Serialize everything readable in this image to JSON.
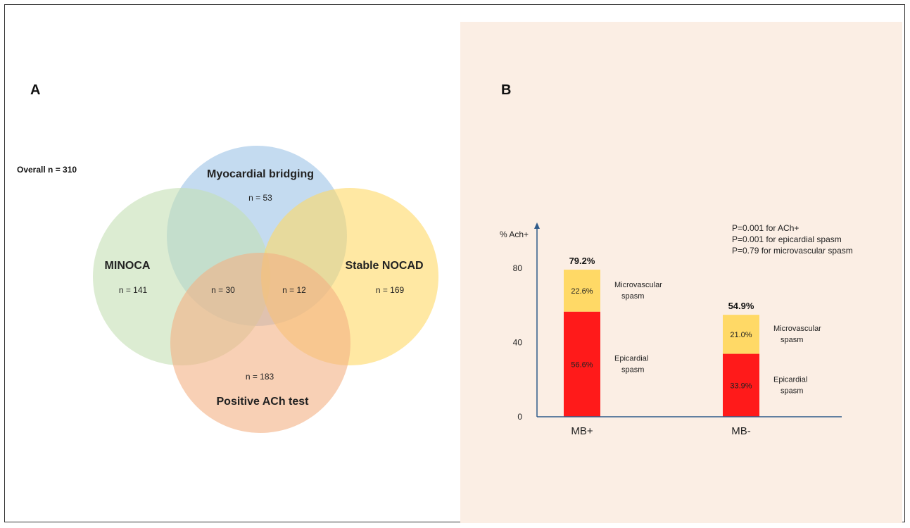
{
  "panel_a": {
    "letter": "A",
    "overall_label": "Overall n = 310",
    "sets": [
      {
        "name": "Myocardial bridging",
        "count_label": "n = 53",
        "color": "#9dc3e6"
      },
      {
        "name": "MINOCA",
        "count_label": "n = 141",
        "color": "#c5e0b4"
      },
      {
        "name": "Stable NOCAD",
        "count_label": "n = 169",
        "color": "#ffd966"
      },
      {
        "name": "Positive ACh test",
        "count_label": "n = 183",
        "color": "#f4b183"
      }
    ],
    "intersections": [
      {
        "sets": [
          "Myocardial bridging",
          "MINOCA",
          "Positive ACh test"
        ],
        "count_label": "n = 30"
      },
      {
        "sets": [
          "Myocardial bridging",
          "Stable NOCAD",
          "Positive ACh test"
        ],
        "count_label": "n = 12"
      }
    ]
  },
  "panel_b": {
    "letter": "B",
    "background_color": "#fbeee4",
    "p_values": [
      "P=0.001  for ACh+",
      "P=0.001  for epicardial spasm",
      "P=0.79  for microvascular spasm"
    ]
  },
  "chart_data": {
    "type": "bar",
    "stacked": true,
    "ylabel": "% Ach+",
    "yticks": [
      0,
      40,
      80
    ],
    "ylim": [
      0,
      105
    ],
    "categories": [
      "MB+",
      "MB-"
    ],
    "totals": [
      "79.2%",
      "54.9%"
    ],
    "series": [
      {
        "name": "Epicardial spasm",
        "color": "#ff1a1a",
        "values": [
          56.6,
          33.9
        ],
        "labels": [
          "56.6%",
          "33.9%"
        ],
        "legend": [
          "Epicardial",
          "spasm"
        ]
      },
      {
        "name": "Microvascular spasm",
        "color": "#ffd966",
        "values": [
          22.6,
          21.0
        ],
        "labels": [
          "22.6%",
          "21.0%"
        ],
        "legend": [
          "Microvascular",
          "spasm"
        ]
      }
    ]
  }
}
